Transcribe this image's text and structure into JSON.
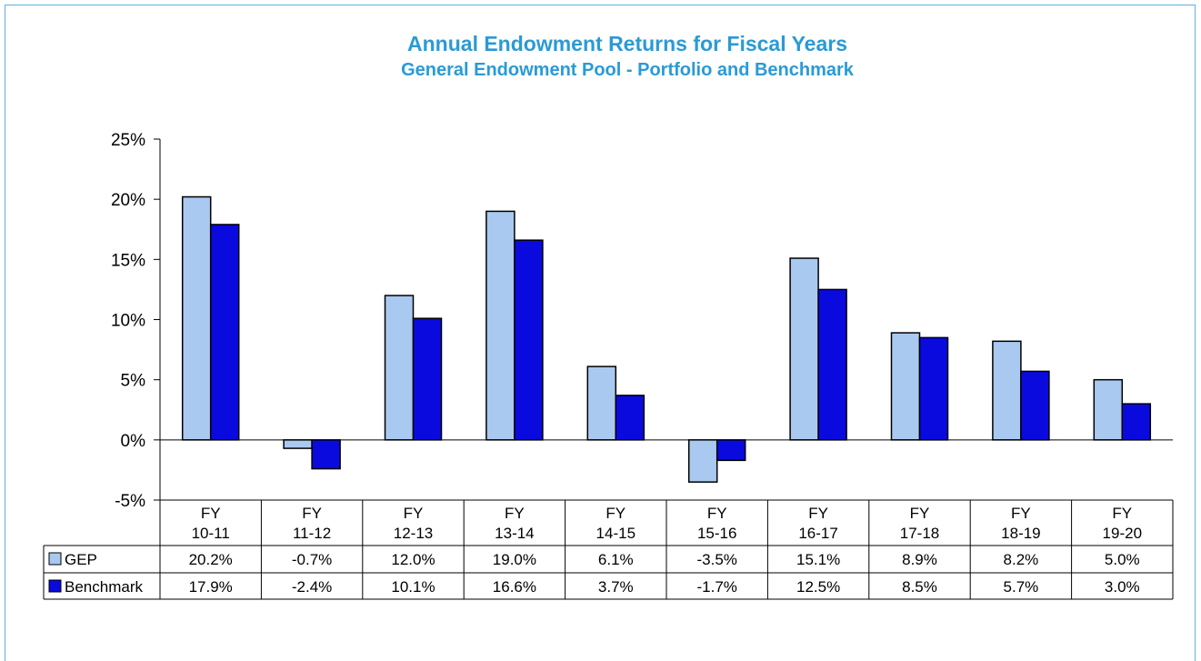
{
  "colors": {
    "title": "#2a9ad6",
    "frame": "#5fb3d9",
    "gep": "#a9c9f0",
    "benchmark": "#0a0adf",
    "axis": "#000000"
  },
  "chart_data": {
    "type": "bar",
    "title": "Annual Endowment Returns for Fiscal Years",
    "subtitle": "General Endowment Pool - Portfolio and Benchmark",
    "xlabel": "",
    "ylabel": "",
    "ylim": [
      -5,
      25
    ],
    "yticks": [
      -5,
      0,
      5,
      10,
      15,
      20,
      25
    ],
    "ytick_labels": [
      "-5%",
      "0%",
      "5%",
      "10%",
      "15%",
      "20%",
      "25%"
    ],
    "categories": [
      [
        "FY",
        "10-11"
      ],
      [
        "FY",
        "11-12"
      ],
      [
        "FY",
        "12-13"
      ],
      [
        "FY",
        "13-14"
      ],
      [
        "FY",
        "14-15"
      ],
      [
        "FY",
        "15-16"
      ],
      [
        "FY",
        "16-17"
      ],
      [
        "FY",
        "17-18"
      ],
      [
        "FY",
        "18-19"
      ],
      [
        "FY",
        "19-20"
      ]
    ],
    "grid": false,
    "legend": "data-table",
    "series": [
      {
        "name": "GEP",
        "values": [
          20.2,
          -0.7,
          12.0,
          19.0,
          6.1,
          -3.5,
          15.1,
          8.9,
          8.2,
          5.0
        ],
        "labels": [
          "20.2%",
          "-0.7%",
          "12.0%",
          "19.0%",
          "6.1%",
          "-3.5%",
          "15.1%",
          "8.9%",
          "8.2%",
          "5.0%"
        ]
      },
      {
        "name": "Benchmark",
        "values": [
          17.9,
          -2.4,
          10.1,
          16.6,
          3.7,
          -1.7,
          12.5,
          8.5,
          5.7,
          3.0
        ],
        "labels": [
          "17.9%",
          "-2.4%",
          "10.1%",
          "16.6%",
          "3.7%",
          "-1.7%",
          "12.5%",
          "8.5%",
          "5.7%",
          "3.0%"
        ]
      }
    ]
  }
}
